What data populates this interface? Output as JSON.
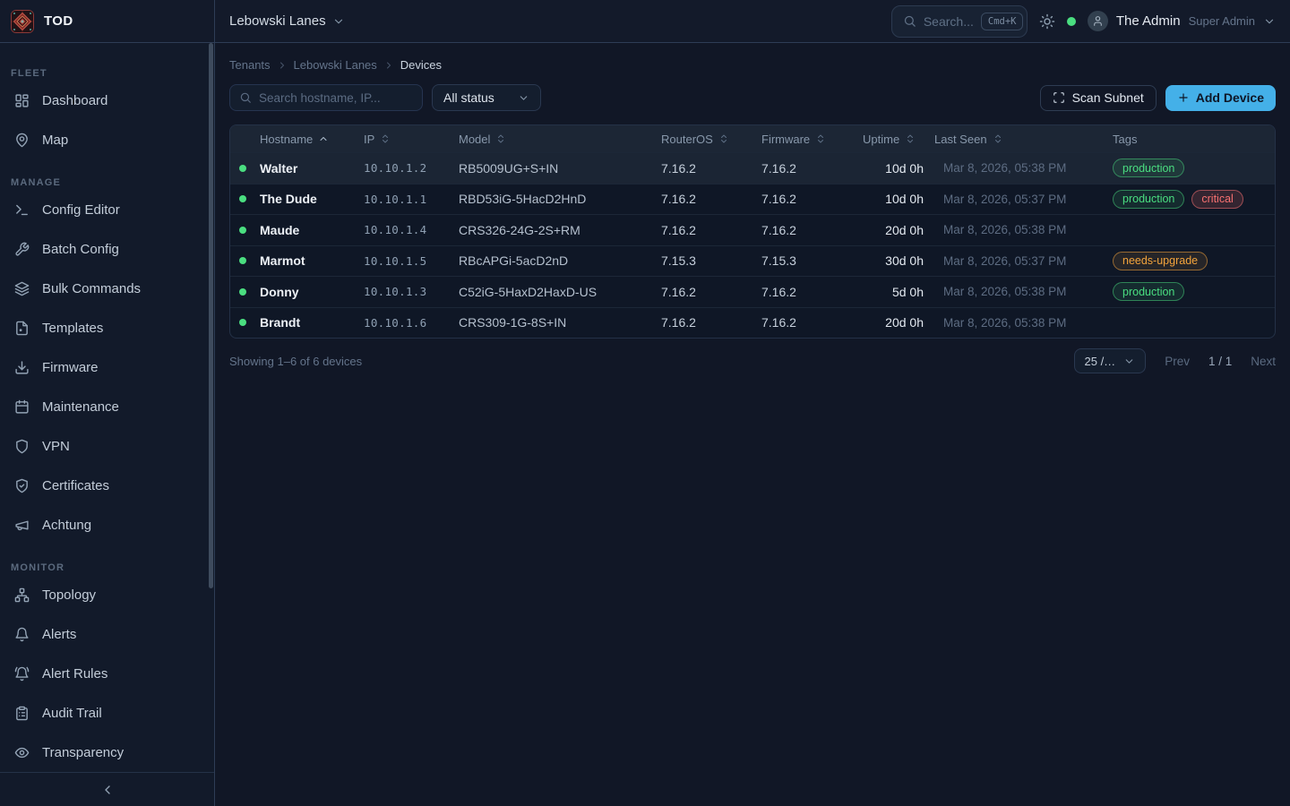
{
  "brand": {
    "name": "TOD"
  },
  "topbar": {
    "tenant": "Lebowski Lanes",
    "search_placeholder": "Search...",
    "search_kbd": "Cmd+K",
    "user_name": "The Admin",
    "user_role": "Super Admin"
  },
  "sidebar": {
    "sections": [
      {
        "label": "FLEET",
        "items": [
          {
            "icon": "layout-dashboard",
            "label": "Dashboard"
          },
          {
            "icon": "map-pin",
            "label": "Map"
          }
        ]
      },
      {
        "label": "MANAGE",
        "items": [
          {
            "icon": "terminal",
            "label": "Config Editor"
          },
          {
            "icon": "wrench",
            "label": "Batch Config"
          },
          {
            "icon": "layers",
            "label": "Bulk Commands"
          },
          {
            "icon": "file",
            "label": "Templates"
          },
          {
            "icon": "download",
            "label": "Firmware"
          },
          {
            "icon": "calendar",
            "label": "Maintenance"
          },
          {
            "icon": "shield",
            "label": "VPN"
          },
          {
            "icon": "shield-check",
            "label": "Certificates"
          },
          {
            "icon": "megaphone",
            "label": "Achtung"
          }
        ]
      },
      {
        "label": "MONITOR",
        "items": [
          {
            "icon": "network",
            "label": "Topology"
          },
          {
            "icon": "bell",
            "label": "Alerts"
          },
          {
            "icon": "bell-ring",
            "label": "Alert Rules"
          },
          {
            "icon": "clipboard-list",
            "label": "Audit Trail"
          },
          {
            "icon": "eye",
            "label": "Transparency"
          }
        ]
      }
    ]
  },
  "breadcrumb": [
    "Tenants",
    "Lebowski Lanes",
    "Devices"
  ],
  "filters": {
    "search_placeholder": "Search hostname, IP...",
    "status_filter": "All status"
  },
  "actions": {
    "scan_subnet": "Scan Subnet",
    "add_device": "Add Device"
  },
  "table": {
    "columns": [
      "Hostname",
      "IP",
      "Model",
      "RouterOS",
      "Firmware",
      "Uptime",
      "Last Seen",
      "Tags"
    ],
    "sort_column": "Hostname",
    "sort_direction": "asc",
    "rows": [
      {
        "status": "online",
        "hostname": "Walter",
        "ip": "10.10.1.2",
        "model": "RB5009UG+S+IN",
        "routeros": "7.16.2",
        "firmware": "7.16.2",
        "uptime": "10d 0h",
        "last_seen": "Mar 8, 2026, 05:38 PM",
        "highlighted": true,
        "tags": [
          {
            "label": "production",
            "color": "green"
          }
        ]
      },
      {
        "status": "online",
        "hostname": "The Dude",
        "ip": "10.10.1.1",
        "model": "RBD53iG-5HacD2HnD",
        "routeros": "7.16.2",
        "firmware": "7.16.2",
        "uptime": "10d 0h",
        "last_seen": "Mar 8, 2026, 05:37 PM",
        "highlighted": false,
        "tags": [
          {
            "label": "production",
            "color": "green"
          },
          {
            "label": "critical",
            "color": "red"
          }
        ]
      },
      {
        "status": "online",
        "hostname": "Maude",
        "ip": "10.10.1.4",
        "model": "CRS326-24G-2S+RM",
        "routeros": "7.16.2",
        "firmware": "7.16.2",
        "uptime": "20d 0h",
        "last_seen": "Mar 8, 2026, 05:38 PM",
        "highlighted": false,
        "tags": []
      },
      {
        "status": "online",
        "hostname": "Marmot",
        "ip": "10.10.1.5",
        "model": "RBcAPGi-5acD2nD",
        "routeros": "7.15.3",
        "firmware": "7.15.3",
        "uptime": "30d 0h",
        "last_seen": "Mar 8, 2026, 05:37 PM",
        "highlighted": false,
        "tags": [
          {
            "label": "needs-upgrade",
            "color": "amber"
          }
        ]
      },
      {
        "status": "online",
        "hostname": "Donny",
        "ip": "10.10.1.3",
        "model": "C52iG-5HaxD2HaxD-US",
        "routeros": "7.16.2",
        "firmware": "7.16.2",
        "uptime": "5d 0h",
        "last_seen": "Mar 8, 2026, 05:38 PM",
        "highlighted": false,
        "tags": [
          {
            "label": "production",
            "color": "green"
          }
        ]
      },
      {
        "status": "online",
        "hostname": "Brandt",
        "ip": "10.10.1.6",
        "model": "CRS309-1G-8S+IN",
        "routeros": "7.16.2",
        "firmware": "7.16.2",
        "uptime": "20d 0h",
        "last_seen": "Mar 8, 2026, 05:38 PM",
        "highlighted": false,
        "tags": []
      }
    ]
  },
  "pagination": {
    "summary": "Showing 1–6 of 6 devices",
    "page_size": "25 /…",
    "prev": "Prev",
    "page": "1 / 1",
    "next": "Next"
  },
  "colors": {
    "accent": "#44B0E8",
    "status_online": "#4ADE80",
    "tag_green": "#4ADE80",
    "tag_red": "#F87171",
    "tag_amber": "#F2A33C"
  }
}
